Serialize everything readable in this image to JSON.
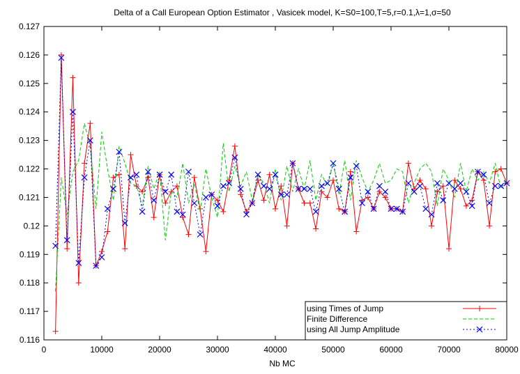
{
  "chart_data": {
    "type": "line",
    "title": "Delta of a Call European Option Estimator , Vasicek model, K=S0=100,T=5,r=0.1,λ=1,σ=50",
    "xlabel": "Nb MC",
    "ylabel": "",
    "xlim": [
      0,
      80000
    ],
    "ylim": [
      0.116,
      0.127
    ],
    "xticks": [
      0,
      10000,
      20000,
      30000,
      40000,
      50000,
      60000,
      70000,
      80000
    ],
    "yticks": [
      0.116,
      0.117,
      0.118,
      0.119,
      0.12,
      0.121,
      0.122,
      0.123,
      0.124,
      0.125,
      0.126,
      0.127
    ],
    "x": [
      2000,
      3000,
      4000,
      5000,
      6000,
      7000,
      8000,
      9000,
      10000,
      11000,
      12000,
      13000,
      14000,
      15000,
      16000,
      17000,
      18000,
      19000,
      20000,
      21000,
      22000,
      23000,
      24000,
      25000,
      26000,
      27000,
      28000,
      29000,
      30000,
      31000,
      32000,
      33000,
      34000,
      35000,
      36000,
      37000,
      38000,
      39000,
      40000,
      41000,
      42000,
      43000,
      44000,
      45000,
      46000,
      47000,
      48000,
      49000,
      50000,
      51000,
      52000,
      53000,
      54000,
      55000,
      56000,
      57000,
      58000,
      59000,
      60000,
      61000,
      62000,
      63000,
      64000,
      65000,
      66000,
      67000,
      68000,
      69000,
      70000,
      71000,
      72000,
      73000,
      74000,
      75000,
      76000,
      77000,
      78000,
      79000,
      80000
    ],
    "series": [
      {
        "name": "using Times of Jump",
        "color": "#ff0000",
        "style": "solid",
        "marker": "plus",
        "values": [
          0.1163,
          0.126,
          0.1192,
          0.1252,
          0.118,
          0.1222,
          0.1236,
          0.1186,
          0.1191,
          0.1198,
          0.1217,
          0.1218,
          0.1192,
          0.1225,
          0.1214,
          0.1212,
          0.1217,
          0.1203,
          0.1218,
          0.1208,
          0.1212,
          0.1214,
          0.1203,
          0.1197,
          0.1217,
          0.1206,
          0.1191,
          0.1211,
          0.1209,
          0.1205,
          0.1216,
          0.1228,
          0.1211,
          0.1205,
          0.1208,
          0.1216,
          0.1209,
          0.1218,
          0.1206,
          0.1214,
          0.12,
          0.1222,
          0.1213,
          0.1208,
          0.1208,
          0.1199,
          0.1212,
          0.121,
          0.1216,
          0.1206,
          0.1205,
          0.1219,
          0.1198,
          0.1209,
          0.121,
          0.1206,
          0.1212,
          0.121,
          0.1206,
          0.1206,
          0.1205,
          0.1222,
          0.1213,
          0.1216,
          0.1213,
          0.12,
          0.1212,
          0.1214,
          0.1192,
          0.1216,
          0.1213,
          0.1207,
          0.1209,
          0.1219,
          0.1216,
          0.12,
          0.1219,
          0.122,
          0.1215
        ]
      },
      {
        "name": "Finite Difference",
        "color": "#00cc00",
        "style": "dashed",
        "marker": "none",
        "values": [
          0.1177,
          0.1217,
          0.1204,
          0.1219,
          0.1223,
          0.1236,
          0.1228,
          0.1206,
          0.1233,
          0.122,
          0.1209,
          0.1228,
          0.1222,
          0.1215,
          0.1214,
          0.1207,
          0.1221,
          0.1213,
          0.1219,
          0.1195,
          0.1212,
          0.121,
          0.1222,
          0.1208,
          0.1215,
          0.1205,
          0.122,
          0.121,
          0.1203,
          0.1229,
          0.1212,
          0.1221,
          0.1214,
          0.1219,
          0.1209,
          0.1218,
          0.1215,
          0.1208,
          0.122,
          0.1209,
          0.1221,
          0.1212,
          0.122,
          0.1213,
          0.1223,
          0.1209,
          0.1218,
          0.1214,
          0.1222,
          0.1211,
          0.1223,
          0.1209,
          0.1223,
          0.1217,
          0.1212,
          0.1216,
          0.1222,
          0.1215,
          0.1216,
          0.122,
          0.1219,
          0.1208,
          0.1215,
          0.122,
          0.1222,
          0.1219,
          0.1207,
          0.122,
          0.1216,
          0.121,
          0.1222,
          0.1212,
          0.122,
          0.1216,
          0.1219,
          0.1215,
          0.1222,
          0.1213,
          0.1216
        ]
      },
      {
        "name": "using All Jump Amplitude",
        "color": "#0000ff",
        "style": "dotted",
        "marker": "x",
        "values": [
          0.1193,
          0.1259,
          0.1195,
          0.124,
          0.1187,
          0.1217,
          0.123,
          0.1186,
          0.1189,
          0.1206,
          0.1213,
          0.1226,
          0.1201,
          0.1217,
          0.1218,
          0.1205,
          0.1219,
          0.1209,
          0.1218,
          0.1212,
          0.1218,
          0.1205,
          0.1204,
          0.1219,
          0.1208,
          0.1197,
          0.121,
          0.1211,
          0.1207,
          0.1214,
          0.1215,
          0.1224,
          0.1213,
          0.1204,
          0.1208,
          0.1218,
          0.1214,
          0.1213,
          0.1218,
          0.1211,
          0.1211,
          0.1222,
          0.1213,
          0.1213,
          0.1213,
          0.1205,
          0.1214,
          0.1215,
          0.1222,
          0.1213,
          0.1205,
          0.1217,
          0.1221,
          0.1208,
          0.1212,
          0.1206,
          0.1214,
          0.1212,
          0.1206,
          0.1206,
          0.1205,
          0.1215,
          0.1212,
          0.1214,
          0.1206,
          0.1204,
          0.1215,
          0.1209,
          0.1215,
          0.1213,
          0.1215,
          0.1212,
          0.1207,
          0.1219,
          0.1218,
          0.1208,
          0.1214,
          0.1214,
          0.1215
        ]
      }
    ],
    "grid": false,
    "legend_position": "bottom-right"
  }
}
